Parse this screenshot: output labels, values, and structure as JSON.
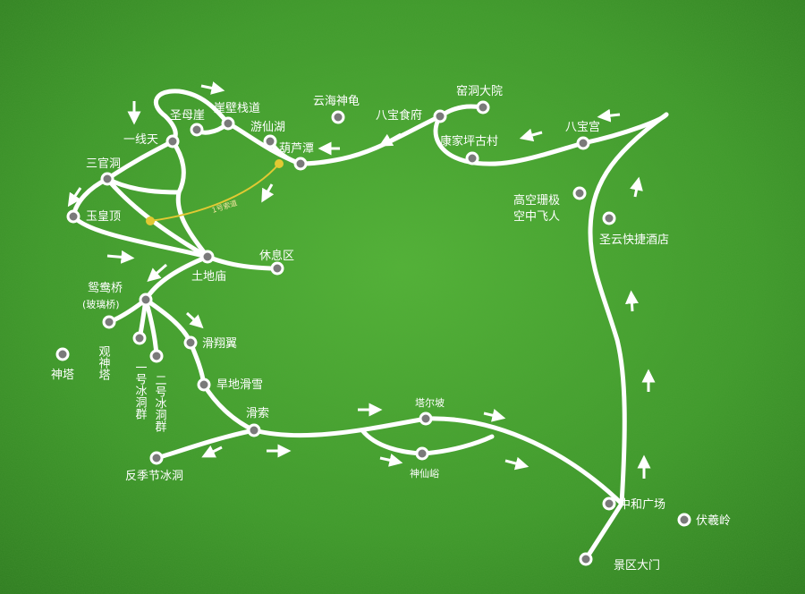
{
  "map": {
    "colors": {
      "grass_light": "#4caf33",
      "grass_dark": "#2f7e21",
      "road": "#ffffff",
      "cable": "#e2c933",
      "marker_fill": "#7a7a7a"
    },
    "labels": {
      "yunhai_shengui": "云海神龟",
      "yaodong_dayuan": "窑洞大院",
      "babao_shifu": "八宝食府",
      "yaxi_zhandao": "崖壁栈道",
      "shengmu_ya": "圣母崖",
      "youxian_hu": "游仙湖",
      "yixiantian": "一线天",
      "hulu_tan": "葫芦潭",
      "kangjia_paigucun": "康家坪古村",
      "babao_gong": "八宝宫",
      "sanguan_dong": "三官洞",
      "gaokong_shanban": "高空珊极",
      "kongzhong_feiren": "空中飞人",
      "yuhuang_ding": "玉皇顶",
      "shengyun_hotel": "圣云快捷酒店",
      "cableway": "1号索道",
      "xiuxi_qu": "休息区",
      "tudi_miao": "土地庙",
      "yuanyang_qiao": "鸳鸯桥",
      "boli_qiao": "(玻璃桥)",
      "shen_ta": "神塔",
      "guan_shen_ta": "观神塔",
      "yihao_bingdong": "一号冰洞群",
      "erhao_bingdong": "二号冰洞群",
      "huaxiang_yi": "滑翔翼",
      "handi_huaxue": "旱地滑雪",
      "hua_suo": "滑索",
      "taer_po": "塔尔坡",
      "shenxian_yu": "神仙峪",
      "fanjijie_bingdong": "反季节冰洞",
      "zhonghe_guangchang": "中和广场",
      "fuxi_ling": "伏羲岭",
      "jingqu_damen": "景区大门"
    }
  }
}
